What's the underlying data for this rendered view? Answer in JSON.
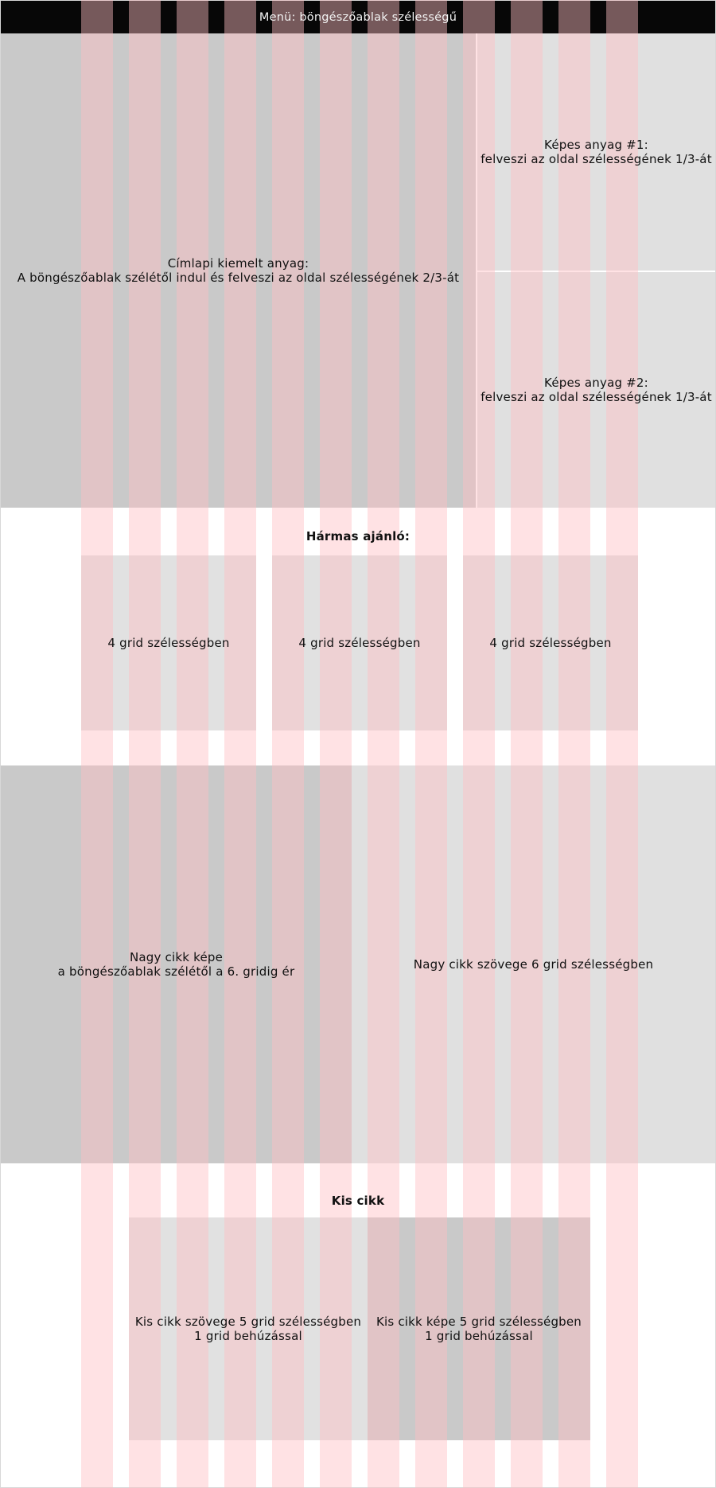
{
  "menu": {
    "label": "Menü: böngészőablak szélességű"
  },
  "hero": {
    "text": "Címlapi kiemelt anyag:\nA böngészőablak szélétől indul és felveszi az oldal szélességének 2/3-át"
  },
  "image_items": [
    {
      "text": "Képes anyag #1:\nfelveszi az oldal szélességének 1/3-át"
    },
    {
      "text": "Képes anyag #2:\nfelveszi az oldal szélességének 1/3-át"
    }
  ],
  "triple": {
    "heading": "Hármas ajánló:",
    "cards": [
      {
        "text": "4 grid szélességben"
      },
      {
        "text": "4 grid szélességben"
      },
      {
        "text": "4 grid szélességben"
      }
    ]
  },
  "big_article": {
    "image_text": "Nagy cikk képe\na böngészőablak szélétől a 6. gridig ér",
    "body_text": "Nagy cikk szövege 6 grid szélességben"
  },
  "small_article": {
    "heading": "Kis cikk",
    "text_block": "Kis cikk szövege 5 grid szélességben\n1 grid behúzással",
    "image_block": "Kis cikk képe 5 grid szélességben\n1 grid behúzással"
  },
  "grid": {
    "columns": 12,
    "column_color": "#ffbec3"
  }
}
